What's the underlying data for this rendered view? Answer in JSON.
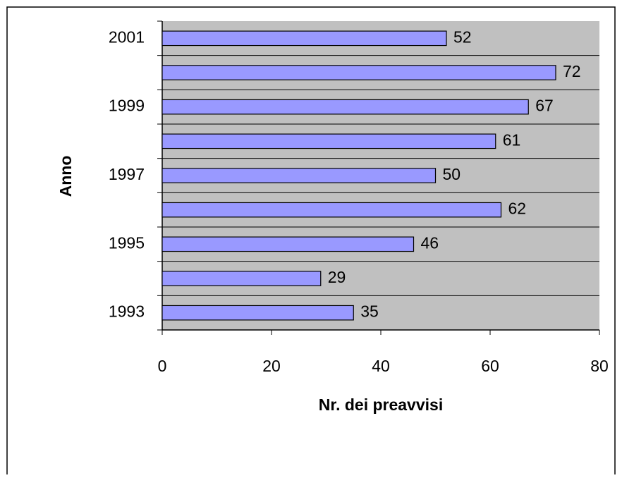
{
  "chart_data": {
    "type": "bar",
    "orientation": "horizontal",
    "y_axis_label": "Anno",
    "x_axis_label": "Nr. dei preavvisi",
    "categories": [
      "2001",
      null,
      "1999",
      null,
      "1997",
      null,
      "1995",
      null,
      "1993"
    ],
    "values": [
      52,
      72,
      67,
      61,
      50,
      62,
      46,
      29,
      35
    ],
    "color": "#9999ff",
    "plot_background": "#c0c0c0",
    "xlim": [
      0,
      80
    ],
    "xticks": [
      0,
      20,
      40,
      60,
      80
    ],
    "category_grid": true
  }
}
